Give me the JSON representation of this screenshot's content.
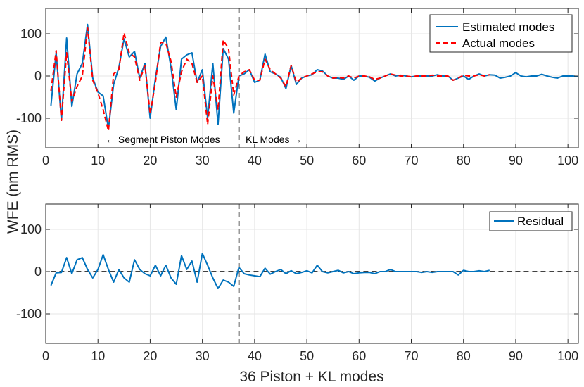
{
  "chart_data": [
    {
      "type": "line",
      "panel": "top",
      "xlim": [
        0,
        102
      ],
      "ylim": [
        -170,
        160
      ],
      "xticks": [
        0,
        10,
        20,
        30,
        40,
        50,
        60,
        70,
        80,
        90,
        100
      ],
      "yticks": [
        -100,
        0,
        100
      ],
      "xtick_labels": [
        "0",
        "10",
        "20",
        "30",
        "40",
        "50",
        "60",
        "70",
        "80",
        "90",
        "100"
      ],
      "ytick_labels": [
        "-100",
        "0",
        "100"
      ],
      "grid": true,
      "legend_position": "top-right",
      "vline_x": 37,
      "annotations": {
        "left": "← Segment Piston Modes",
        "right": "KL Modes →"
      },
      "series": [
        {
          "name": "Estimated modes",
          "color": "#0072BD",
          "style": "solid",
          "x": [
            1,
            2,
            3,
            4,
            5,
            6,
            7,
            8,
            9,
            10,
            11,
            12,
            13,
            14,
            15,
            16,
            17,
            18,
            19,
            20,
            21,
            22,
            23,
            24,
            25,
            26,
            27,
            28,
            29,
            30,
            31,
            32,
            33,
            34,
            35,
            36,
            37,
            38,
            39,
            40,
            41,
            42,
            43,
            44,
            45,
            46,
            47,
            48,
            49,
            50,
            51,
            52,
            53,
            54,
            55,
            56,
            57,
            58,
            59,
            60,
            61,
            62,
            63,
            64,
            65,
            66,
            67,
            68,
            69,
            70,
            71,
            72,
            73,
            74,
            75,
            76,
            77,
            78,
            79,
            80,
            81,
            82,
            83,
            84,
            85,
            86,
            87,
            88,
            89,
            90,
            91,
            92,
            93,
            94,
            95,
            96,
            97,
            98,
            99,
            100,
            101,
            102
          ],
          "values": [
            -70,
            55,
            -105,
            90,
            -72,
            5,
            30,
            122,
            -5,
            -38,
            -47,
            -125,
            -20,
            20,
            88,
            45,
            58,
            -5,
            30,
            -100,
            -5,
            70,
            92,
            20,
            -80,
            40,
            50,
            55,
            -15,
            15,
            -100,
            30,
            -115,
            65,
            40,
            -88,
            0,
            5,
            15,
            -15,
            -10,
            52,
            10,
            5,
            -3,
            -30,
            25,
            -20,
            -5,
            0,
            3,
            15,
            12,
            0,
            -5,
            -5,
            -8,
            0,
            -10,
            0,
            0,
            -3,
            -12,
            -5,
            0,
            5,
            0,
            2,
            0,
            -2,
            0,
            0,
            0,
            0,
            3,
            0,
            0,
            -10,
            -5,
            0,
            -8,
            0,
            5,
            0,
            3,
            2,
            -5,
            -3,
            0,
            8,
            0,
            -2,
            0,
            0,
            4,
            0,
            -3,
            -5,
            0,
            0,
            0,
            -2
          ]
        },
        {
          "name": "Actual modes",
          "color": "#FF0000",
          "style": "dashed",
          "x": [
            1,
            2,
            3,
            4,
            5,
            6,
            7,
            8,
            9,
            10,
            11,
            12,
            13,
            14,
            15,
            16,
            17,
            18,
            19,
            20,
            21,
            22,
            23,
            24,
            25,
            26,
            27,
            28,
            29,
            30,
            31,
            32,
            33,
            34,
            35,
            36,
            37,
            38,
            39,
            40,
            41,
            42,
            43,
            44,
            45,
            46,
            47,
            48,
            49,
            50,
            51,
            52,
            53,
            54,
            55,
            56,
            57,
            58,
            59,
            60,
            61,
            62,
            63,
            64,
            65,
            66,
            67,
            68,
            69,
            70,
            71,
            72,
            73,
            74,
            75,
            76,
            77,
            78,
            79,
            80,
            81,
            82,
            83,
            84,
            85
          ],
          "values": [
            -35,
            60,
            -105,
            55,
            -60,
            -25,
            0,
            115,
            -10,
            -40,
            -80,
            -130,
            5,
            15,
            102,
            55,
            45,
            -10,
            25,
            -90,
            -15,
            80,
            78,
            35,
            -50,
            10,
            40,
            30,
            -15,
            0,
            -115,
            0,
            -80,
            85,
            65,
            -45,
            0,
            10,
            15,
            -10,
            -10,
            40,
            15,
            5,
            -5,
            -25,
            25,
            -15,
            -5,
            0,
            5,
            10,
            10,
            0,
            -5,
            -3,
            -5,
            0,
            -5,
            0,
            0,
            -2,
            -8,
            -5,
            0,
            5,
            2,
            0,
            0,
            -2,
            0,
            0,
            0,
            2,
            0,
            0,
            0,
            -10,
            -5,
            2,
            0,
            0,
            3,
            0,
            3
          ]
        }
      ]
    },
    {
      "type": "line",
      "panel": "bottom",
      "xlim": [
        0,
        102
      ],
      "ylim": [
        -170,
        160
      ],
      "xticks": [
        0,
        10,
        20,
        30,
        40,
        50,
        60,
        70,
        80,
        90,
        100
      ],
      "yticks": [
        -100,
        0,
        100
      ],
      "xtick_labels": [
        "0",
        "10",
        "20",
        "30",
        "40",
        "50",
        "60",
        "70",
        "80",
        "90",
        "100"
      ],
      "ytick_labels": [
        "-100",
        "0",
        "100"
      ],
      "grid": true,
      "legend_position": "top-right",
      "vline_x": 37,
      "hline_y": 0,
      "xlabel": "36 Piston + KL modes",
      "series": [
        {
          "name": "Residual",
          "color": "#0072BD",
          "style": "solid",
          "x": [
            1,
            2,
            3,
            4,
            5,
            6,
            7,
            8,
            9,
            10,
            11,
            12,
            13,
            14,
            15,
            16,
            17,
            18,
            19,
            20,
            21,
            22,
            23,
            24,
            25,
            26,
            27,
            28,
            29,
            30,
            31,
            32,
            33,
            34,
            35,
            36,
            37,
            38,
            39,
            40,
            41,
            42,
            43,
            44,
            45,
            46,
            47,
            48,
            49,
            50,
            51,
            52,
            53,
            54,
            55,
            56,
            57,
            58,
            59,
            60,
            61,
            62,
            63,
            64,
            65,
            66,
            67,
            68,
            69,
            70,
            71,
            72,
            73,
            74,
            75,
            76,
            77,
            78,
            79,
            80,
            81,
            82,
            83,
            84,
            85
          ],
          "values": [
            -33,
            -3,
            -2,
            33,
            -5,
            28,
            33,
            5,
            -15,
            5,
            40,
            5,
            -25,
            5,
            -15,
            -25,
            28,
            5,
            -5,
            -10,
            15,
            -10,
            15,
            -15,
            -30,
            38,
            5,
            25,
            -25,
            43,
            15,
            -15,
            -40,
            -20,
            -25,
            -35,
            10,
            -5,
            -8,
            -10,
            -12,
            8,
            -6,
            0,
            5,
            -5,
            2,
            -5,
            -2,
            2,
            -3,
            15,
            0,
            -3,
            0,
            3,
            -3,
            0,
            -5,
            -3,
            -2,
            -2,
            -5,
            0,
            0,
            5,
            0,
            0,
            0,
            0,
            0,
            -2,
            0,
            -2,
            0,
            0,
            0,
            0,
            -8,
            3,
            0,
            0,
            2,
            0,
            3
          ]
        }
      ]
    }
  ],
  "shared_ylabel": "WFE (nm RMS)"
}
